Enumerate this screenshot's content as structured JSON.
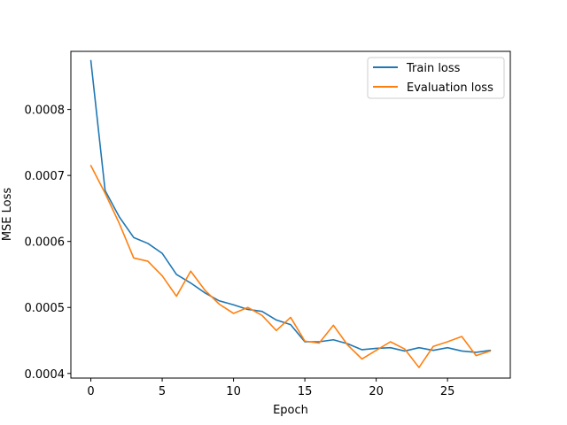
{
  "chart_data": {
    "type": "line",
    "title": "",
    "xlabel": "Epoch",
    "ylabel": "MSE Loss",
    "xlim": [
      -1.4,
      29.4
    ],
    "ylim": [
      0.000393,
      0.000888
    ],
    "xticks": [
      0,
      5,
      10,
      15,
      20,
      25
    ],
    "yticks": [
      0.0004,
      0.0005,
      0.0006,
      0.0007,
      0.0008
    ],
    "ytick_labels": [
      "0.0004",
      "0.0005",
      "0.0006",
      "0.0007",
      "0.0008"
    ],
    "grid": false,
    "legend_position": "top-right",
    "x": [
      0,
      1,
      2,
      3,
      4,
      5,
      6,
      7,
      8,
      9,
      10,
      11,
      12,
      13,
      14,
      15,
      16,
      17,
      18,
      19,
      20,
      21,
      22,
      23,
      24,
      25,
      26,
      27,
      28
    ],
    "series": [
      {
        "name": "Train loss",
        "color": "#1f77b4",
        "values": [
          0.000874,
          0.000677,
          0.000637,
          0.000606,
          0.000597,
          0.000582,
          0.00055,
          0.000537,
          0.000522,
          0.00051,
          0.000504,
          0.000497,
          0.000494,
          0.000481,
          0.000474,
          0.000448,
          0.000448,
          0.000451,
          0.000445,
          0.000436,
          0.000438,
          0.000439,
          0.000434,
          0.000439,
          0.000435,
          0.000439,
          0.000434,
          0.000432,
          0.000435
        ]
      },
      {
        "name": "Evaluation loss",
        "color": "#ff7f0e",
        "values": [
          0.000715,
          0.000673,
          0.000627,
          0.000575,
          0.00057,
          0.000548,
          0.000517,
          0.000555,
          0.000526,
          0.000505,
          0.000491,
          0.0005,
          0.000488,
          0.000465,
          0.000485,
          0.000449,
          0.000446,
          0.000473,
          0.000443,
          0.000422,
          0.000435,
          0.000448,
          0.000437,
          0.000409,
          0.000441,
          0.000448,
          0.000456,
          0.000427,
          0.000434
        ]
      }
    ]
  }
}
